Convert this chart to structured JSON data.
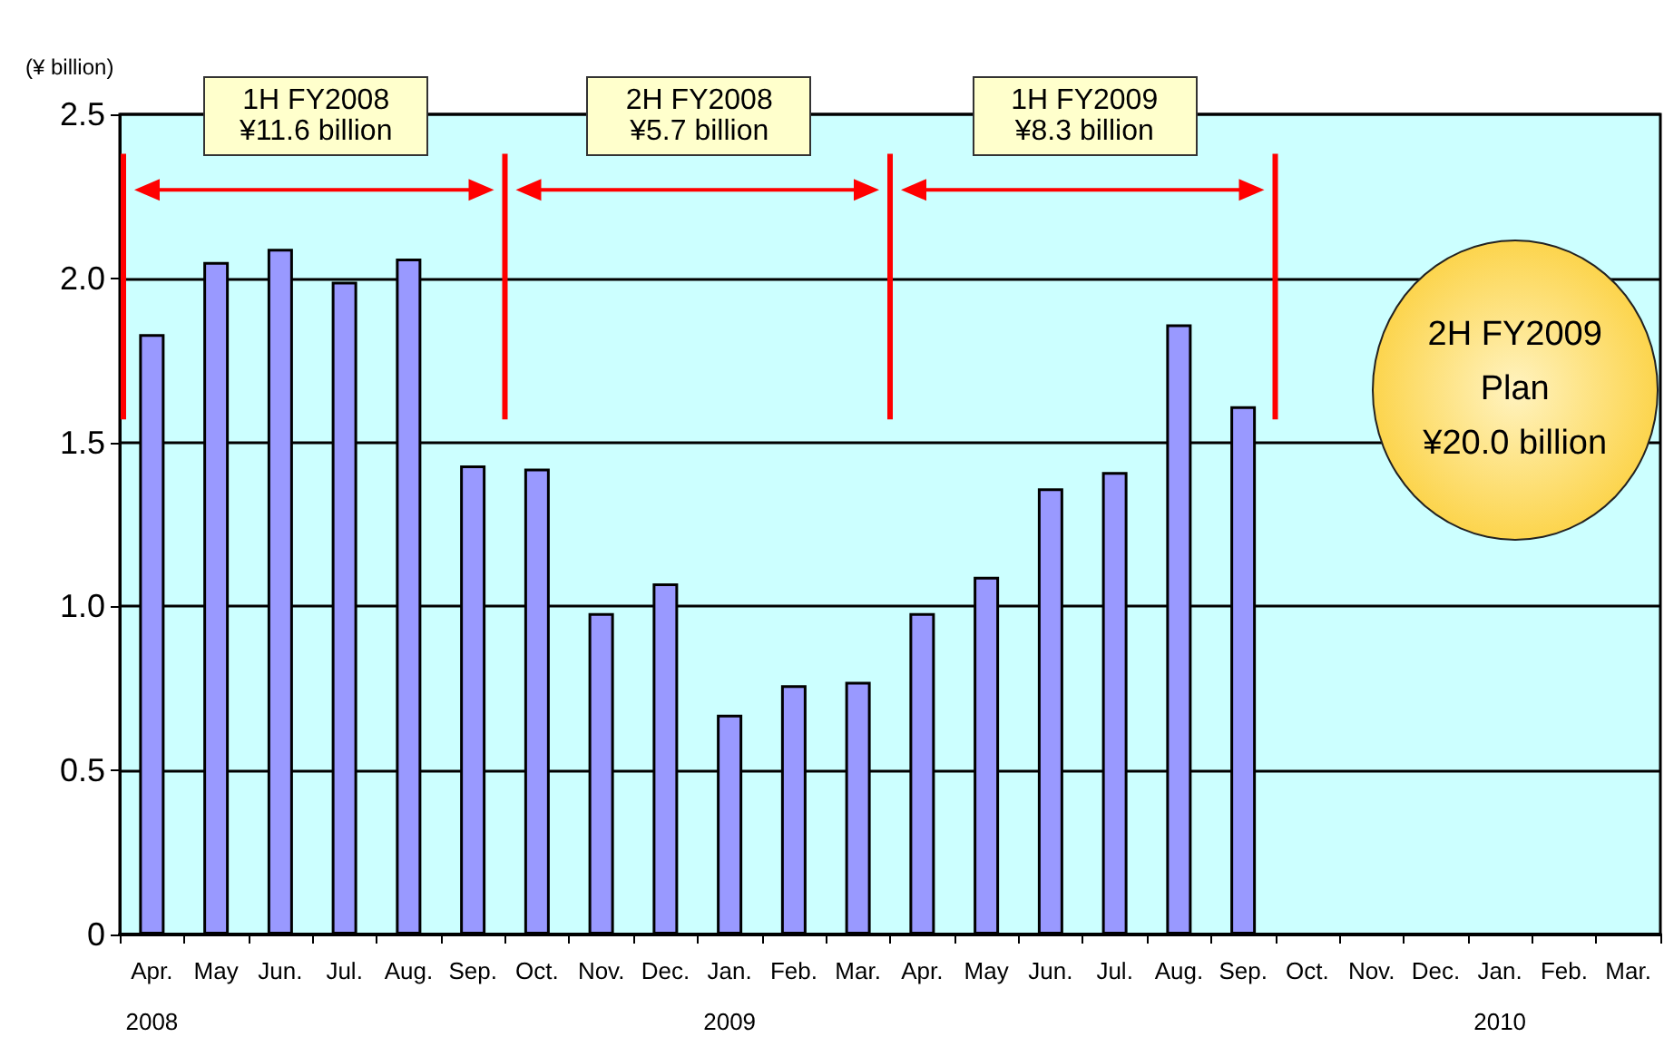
{
  "chart_data": {
    "type": "bar",
    "ylabel": "(¥ billion)",
    "categories": [
      "Apr.\n2008",
      "May",
      "Jun.",
      "Jul.",
      "Aug.",
      "Sep.",
      "Oct.",
      "Nov.",
      "Dec.",
      "Jan.\n2009",
      "Feb.",
      "Mar.",
      "Apr.",
      "May",
      "Jun.",
      "Jul.",
      "Aug.",
      "Sep.",
      "Oct.",
      "Nov.",
      "Dec.",
      "Jan.\n2010",
      "Feb.",
      "Mar."
    ],
    "values": [
      1.83,
      2.05,
      2.09,
      1.99,
      2.06,
      1.43,
      1.42,
      0.98,
      1.07,
      0.67,
      0.76,
      0.77,
      0.98,
      1.09,
      1.36,
      1.41,
      1.86,
      1.61,
      null,
      null,
      null,
      null,
      null,
      null
    ],
    "color": "#9999ff",
    "ylim": [
      0,
      2.5
    ],
    "yticks": [
      0,
      0.5,
      {
        "value": 1,
        "label": "1.0"
      },
      1.5,
      {
        "value": 2,
        "label": "2.0"
      },
      2.5
    ],
    "grid": "y",
    "annotations": [
      "1H FY2008\n¥11.6 billion",
      "2H FY2008\n¥5.7 billion",
      "1H FY2009\n¥8.3 billion",
      "2H FY2009\nPlan\n¥20.0 billion"
    ]
  }
}
